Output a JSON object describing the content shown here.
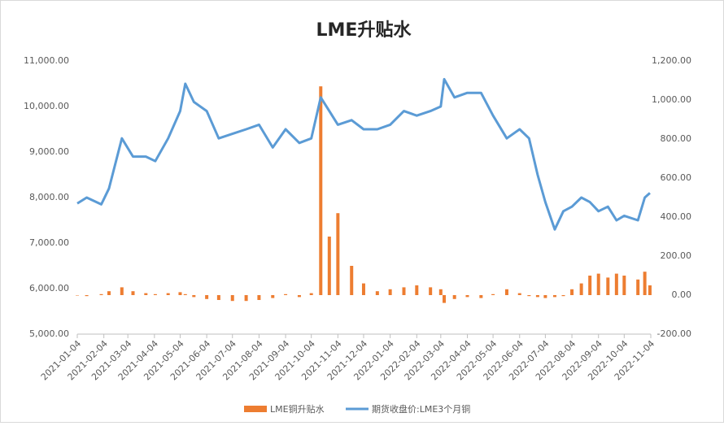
{
  "chart_data": {
    "type": "bar-line",
    "title": "LME升贴水",
    "x": [
      "2021-01-04",
      "2021-01-15",
      "2021-02-01",
      "2021-02-10",
      "2021-02-25",
      "2021-03-10",
      "2021-03-25",
      "2021-04-05",
      "2021-04-20",
      "2021-05-04",
      "2021-05-10",
      "2021-05-20",
      "2021-06-04",
      "2021-06-18",
      "2021-07-04",
      "2021-07-20",
      "2021-08-04",
      "2021-08-20",
      "2021-09-04",
      "2021-09-20",
      "2021-10-04",
      "2021-10-15",
      "2021-10-25",
      "2021-11-04",
      "2021-11-20",
      "2021-12-04",
      "2021-12-20",
      "2022-01-04",
      "2022-01-20",
      "2022-02-04",
      "2022-02-20",
      "2022-03-04",
      "2022-03-08",
      "2022-03-20",
      "2022-04-04",
      "2022-04-20",
      "2022-05-04",
      "2022-05-20",
      "2022-06-04",
      "2022-06-15",
      "2022-06-25",
      "2022-07-04",
      "2022-07-15",
      "2022-07-25",
      "2022-08-04",
      "2022-08-15",
      "2022-08-25",
      "2022-09-04",
      "2022-09-15",
      "2022-09-25",
      "2022-10-04",
      "2022-10-20",
      "2022-10-28",
      "2022-11-03"
    ],
    "series": [
      {
        "name": "LME铜升贴水",
        "color": "#ed7d31",
        "axis": "y2",
        "kind": "bar",
        "values": [
          0,
          -5,
          5,
          20,
          40,
          20,
          10,
          5,
          10,
          15,
          5,
          -10,
          -20,
          -25,
          -30,
          -30,
          -25,
          -15,
          5,
          -10,
          10,
          1070,
          300,
          420,
          150,
          60,
          20,
          30,
          40,
          50,
          40,
          30,
          -40,
          -20,
          -10,
          -15,
          5,
          30,
          10,
          -5,
          -10,
          -15,
          -10,
          -5,
          30,
          60,
          100,
          110,
          90,
          110,
          100,
          80,
          120,
          50
        ]
      },
      {
        "name": "期货收盘价:LME3个月铜",
        "color": "#5b9bd5",
        "axis": "y",
        "kind": "line",
        "values": [
          7870,
          8000,
          7850,
          8200,
          9300,
          8900,
          8900,
          8800,
          9300,
          9900,
          10500,
          10100,
          9900,
          9300,
          9400,
          9500,
          9600,
          9100,
          9500,
          9200,
          9300,
          10200,
          9900,
          9600,
          9700,
          9500,
          9500,
          9600,
          9900,
          9800,
          9900,
          10000,
          10600,
          10200,
          10300,
          10300,
          9800,
          9300,
          9500,
          9300,
          8500,
          7900,
          7300,
          7700,
          7800,
          8000,
          7900,
          7700,
          7800,
          7500,
          7600,
          7500,
          8000,
          8100
        ]
      }
    ],
    "xlim": [
      "2021-01-04",
      "2022-11-04"
    ],
    "xticks": [
      "2021-01-04",
      "2021-02-04",
      "2021-03-04",
      "2021-04-04",
      "2021-05-04",
      "2021-06-04",
      "2021-07-04",
      "2021-08-04",
      "2021-09-04",
      "2021-10-04",
      "2021-11-04",
      "2021-12-04",
      "2022-01-04",
      "2022-02-04",
      "2022-03-04",
      "2022-04-04",
      "2022-05-04",
      "2022-06-04",
      "2022-07-04",
      "2022-08-04",
      "2022-09-04",
      "2022-10-04",
      "2022-11-04"
    ],
    "ylim": [
      5000,
      11000
    ],
    "yticks": [
      {
        "value": 5000,
        "label": "5,000.00"
      },
      {
        "value": 6000,
        "label": "6,000.00"
      },
      {
        "value": 7000,
        "label": "7,000.00"
      },
      {
        "value": 8000,
        "label": "8,000.00"
      },
      {
        "value": 9000,
        "label": "9,000.00"
      },
      {
        "value": 10000,
        "label": "10,000.00"
      },
      {
        "value": 11000,
        "label": "11,000.00"
      }
    ],
    "y2lim": [
      -200,
      1200
    ],
    "y2ticks": [
      {
        "value": -200,
        "label": "-200.00"
      },
      {
        "value": 0,
        "label": "0.00"
      },
      {
        "value": 200,
        "label": "200.00"
      },
      {
        "value": 400,
        "label": "400.00"
      },
      {
        "value": 600,
        "label": "600.00"
      },
      {
        "value": 800,
        "label": "800.00"
      },
      {
        "value": 1000,
        "label": "1,000.00"
      },
      {
        "value": 1200,
        "label": "1,200.00"
      }
    ],
    "legend": "bottom"
  }
}
